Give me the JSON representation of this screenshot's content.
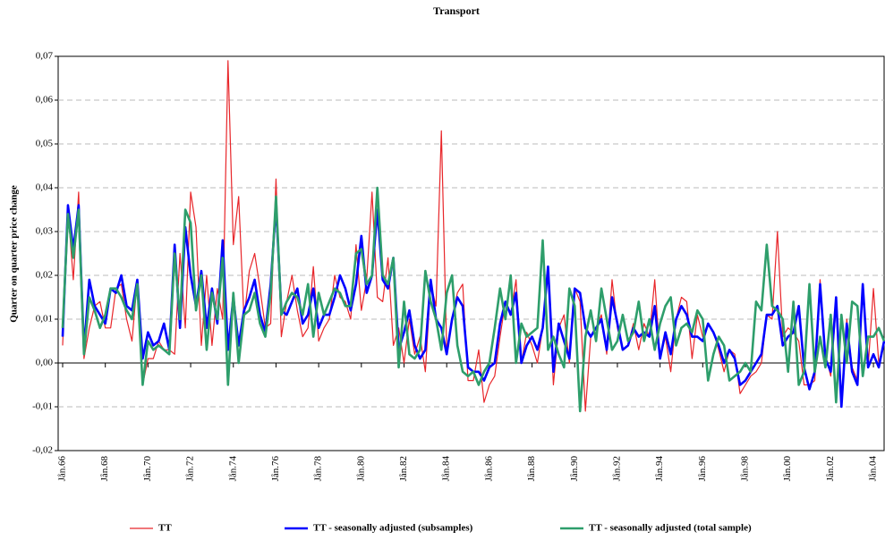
{
  "chart_data": {
    "type": "line",
    "title": "Transport",
    "ylabel": "Quarter on quarter price change",
    "categories": [
      "Jån.66",
      null,
      null,
      null,
      null,
      null,
      null,
      null,
      "Jån.68",
      null,
      null,
      null,
      null,
      null,
      null,
      null,
      "Jån.70",
      null,
      null,
      null,
      null,
      null,
      null,
      null,
      "Jån.72",
      null,
      null,
      null,
      null,
      null,
      null,
      null,
      "Jån.74",
      null,
      null,
      null,
      null,
      null,
      null,
      null,
      "Jån.76",
      null,
      null,
      null,
      null,
      null,
      null,
      null,
      "Jån.78",
      null,
      null,
      null,
      null,
      null,
      null,
      null,
      "Jån.80",
      null,
      null,
      null,
      null,
      null,
      null,
      null,
      "Jån.82",
      null,
      null,
      null,
      null,
      null,
      null,
      null,
      "Jån.84",
      null,
      null,
      null,
      null,
      null,
      null,
      null,
      "Jån.86",
      null,
      null,
      null,
      null,
      null,
      null,
      null,
      "Jån.88",
      null,
      null,
      null,
      null,
      null,
      null,
      null,
      "Jån.90",
      null,
      null,
      null,
      null,
      null,
      null,
      null,
      "Jån.92",
      null,
      null,
      null,
      null,
      null,
      null,
      null,
      "Jån.94",
      null,
      null,
      null,
      null,
      null,
      null,
      null,
      "Jån.96",
      null,
      null,
      null,
      null,
      null,
      null,
      null,
      "Jån.98",
      null,
      null,
      null,
      null,
      null,
      null,
      null,
      "Jån.00",
      null,
      null,
      null,
      null,
      null,
      null,
      null,
      "Jån.02",
      null,
      null,
      null,
      null,
      null,
      null,
      null,
      "Jån.04",
      null,
      null
    ],
    "series": [
      {
        "name": "TT",
        "color": "#e8262a",
        "width": 1.2,
        "values": [
          0.004,
          0.035,
          0.019,
          0.039,
          0.001,
          0.008,
          0.013,
          0.014,
          0.008,
          0.008,
          0.017,
          0.018,
          0.01,
          0.005,
          0.019,
          -0.005,
          0.001,
          0.001,
          0.005,
          0.003,
          0.003,
          0.002,
          0.025,
          0.008,
          0.039,
          0.031,
          0.004,
          0.02,
          0.004,
          0.017,
          0.01,
          0.069,
          0.027,
          0.038,
          0.01,
          0.021,
          0.025,
          0.017,
          0.008,
          0.009,
          0.042,
          0.006,
          0.014,
          0.02,
          0.012,
          0.006,
          0.008,
          0.022,
          0.005,
          0.008,
          0.01,
          0.02,
          0.015,
          0.014,
          0.01,
          0.027,
          0.012,
          0.019,
          0.039,
          0.015,
          0.014,
          0.024,
          0.004,
          0.008,
          0.0,
          0.01,
          0.002,
          0.006,
          -0.002,
          0.018,
          0.013,
          0.053,
          0.003,
          0.01,
          0.016,
          0.018,
          -0.004,
          -0.004,
          0.003,
          -0.009,
          -0.005,
          -0.003,
          0.006,
          0.014,
          0.011,
          0.019,
          0.0,
          0.007,
          0.004,
          0.0,
          0.008,
          0.022,
          -0.005,
          0.008,
          0.011,
          0.0,
          0.017,
          0.014,
          -0.011,
          0.006,
          0.008,
          0.011,
          0.002,
          0.019,
          0.008,
          0.003,
          0.004,
          0.009,
          0.003,
          0.009,
          0.006,
          0.019,
          0.001,
          0.006,
          -0.002,
          0.01,
          0.015,
          0.014,
          0.001,
          0.011,
          0.006,
          0.009,
          0.007,
          0.003,
          -0.002,
          0.003,
          0.002,
          -0.007,
          -0.005,
          -0.003,
          -0.002,
          0.0,
          0.011,
          0.01,
          0.03,
          0.006,
          0.008,
          0.007,
          0.005,
          -0.005,
          -0.005,
          -0.004,
          0.019,
          0.002,
          -0.003,
          0.013,
          -0.01,
          0.01,
          -0.001,
          -0.004,
          0.018,
          -0.001,
          0.017,
          0.0,
          0.005
        ]
      },
      {
        "name": "TT - seasonally adjusted (subsamples)",
        "color": "#0000ff",
        "width": 2.6,
        "values": [
          0.006,
          0.036,
          0.026,
          0.036,
          0.003,
          0.019,
          0.013,
          0.011,
          0.009,
          0.017,
          0.016,
          0.02,
          0.013,
          0.012,
          0.019,
          0.001,
          0.007,
          0.004,
          0.005,
          0.009,
          0.003,
          0.027,
          0.008,
          0.031,
          0.02,
          0.013,
          0.021,
          0.008,
          0.017,
          0.009,
          0.028,
          0.003,
          0.015,
          0.004,
          0.012,
          0.015,
          0.019,
          0.011,
          0.007,
          0.018,
          0.036,
          0.012,
          0.011,
          0.014,
          0.017,
          0.009,
          0.011,
          0.017,
          0.008,
          0.011,
          0.011,
          0.015,
          0.02,
          0.017,
          0.012,
          0.018,
          0.029,
          0.016,
          0.02,
          0.035,
          0.019,
          0.017,
          0.024,
          0.003,
          0.007,
          0.012,
          0.004,
          0.001,
          0.003,
          0.019,
          0.01,
          0.008,
          0.002,
          0.01,
          0.015,
          0.013,
          -0.001,
          -0.002,
          -0.002,
          -0.004,
          -0.001,
          0.0,
          0.009,
          0.014,
          0.011,
          0.016,
          0.0,
          0.004,
          0.006,
          0.003,
          0.008,
          0.022,
          -0.002,
          0.009,
          0.005,
          0.001,
          0.017,
          0.016,
          0.008,
          0.006,
          0.008,
          0.01,
          0.003,
          0.015,
          0.009,
          0.003,
          0.004,
          0.008,
          0.006,
          0.007,
          0.006,
          0.013,
          0.001,
          0.007,
          0.002,
          0.01,
          0.013,
          0.011,
          0.006,
          0.006,
          0.005,
          0.009,
          0.007,
          0.004,
          0.0,
          0.003,
          0.001,
          -0.005,
          -0.004,
          -0.002,
          0.0,
          0.002,
          0.011,
          0.011,
          0.013,
          0.004,
          0.006,
          0.007,
          0.013,
          -0.001,
          -0.006,
          -0.002,
          0.018,
          0.001,
          -0.002,
          0.015,
          -0.01,
          0.009,
          -0.002,
          -0.005,
          0.018,
          -0.001,
          0.002,
          -0.001,
          0.005
        ]
      },
      {
        "name": "TT - seasonally adjusted (total sample)",
        "color": "#2e9e6b",
        "width": 2.6,
        "values": [
          0.008,
          0.034,
          0.024,
          0.035,
          0.002,
          0.015,
          0.012,
          0.008,
          0.011,
          0.017,
          0.017,
          0.015,
          0.012,
          0.01,
          0.018,
          -0.005,
          0.005,
          0.003,
          0.004,
          0.003,
          0.002,
          0.025,
          0.01,
          0.035,
          0.032,
          0.012,
          0.02,
          0.003,
          0.016,
          0.01,
          0.024,
          -0.005,
          0.016,
          0.0,
          0.011,
          0.012,
          0.016,
          0.009,
          0.006,
          0.016,
          0.038,
          0.011,
          0.014,
          0.016,
          0.015,
          0.011,
          0.018,
          0.006,
          0.016,
          0.011,
          0.014,
          0.017,
          0.016,
          0.013,
          0.013,
          0.025,
          0.026,
          0.018,
          0.02,
          0.04,
          0.02,
          0.018,
          0.024,
          -0.001,
          0.014,
          0.002,
          0.001,
          0.003,
          0.021,
          0.014,
          0.01,
          0.003,
          0.016,
          0.02,
          0.004,
          -0.002,
          -0.003,
          -0.002,
          -0.005,
          -0.002,
          0.0,
          0.008,
          0.017,
          0.01,
          0.02,
          0.0,
          0.009,
          0.006,
          0.007,
          0.008,
          0.028,
          0.003,
          0.006,
          0.002,
          -0.001,
          0.017,
          0.013,
          -0.011,
          0.006,
          0.012,
          0.005,
          0.017,
          0.01,
          0.003,
          0.005,
          0.011,
          0.005,
          0.007,
          0.014,
          0.005,
          0.01,
          0.003,
          0.009,
          0.013,
          0.015,
          0.004,
          0.008,
          0.009,
          0.007,
          0.012,
          0.01,
          -0.004,
          0.002,
          0.006,
          0.004,
          -0.004,
          -0.003,
          -0.002,
          0.0,
          -0.002,
          0.014,
          0.012,
          0.027,
          0.013,
          0.012,
          0.01,
          -0.002,
          0.014,
          -0.005,
          -0.002,
          0.018,
          -0.002,
          0.006,
          -0.001,
          0.011,
          -0.009,
          0.011,
          0.0,
          0.014,
          0.013,
          -0.003,
          0.006,
          0.006,
          0.008,
          0.005
        ]
      }
    ],
    "ylim": [
      -0.02,
      0.07
    ],
    "yticks": [
      {
        "value": -0.02,
        "label": "-0,02"
      },
      {
        "value": -0.01,
        "label": "-0,01"
      },
      {
        "value": 0,
        "label": "0,00"
      },
      {
        "value": 0.01,
        "label": "0,01"
      },
      {
        "value": 0.02,
        "label": "0,02"
      },
      {
        "value": 0.03,
        "label": "0,03"
      },
      {
        "value": 0.04,
        "label": "0,04"
      },
      {
        "value": 0.05,
        "label": "0,05"
      },
      {
        "value": 0.06,
        "label": "0,06"
      },
      {
        "value": 0.07,
        "label": "0,07"
      }
    ],
    "grid": true,
    "legend": "bottom"
  }
}
